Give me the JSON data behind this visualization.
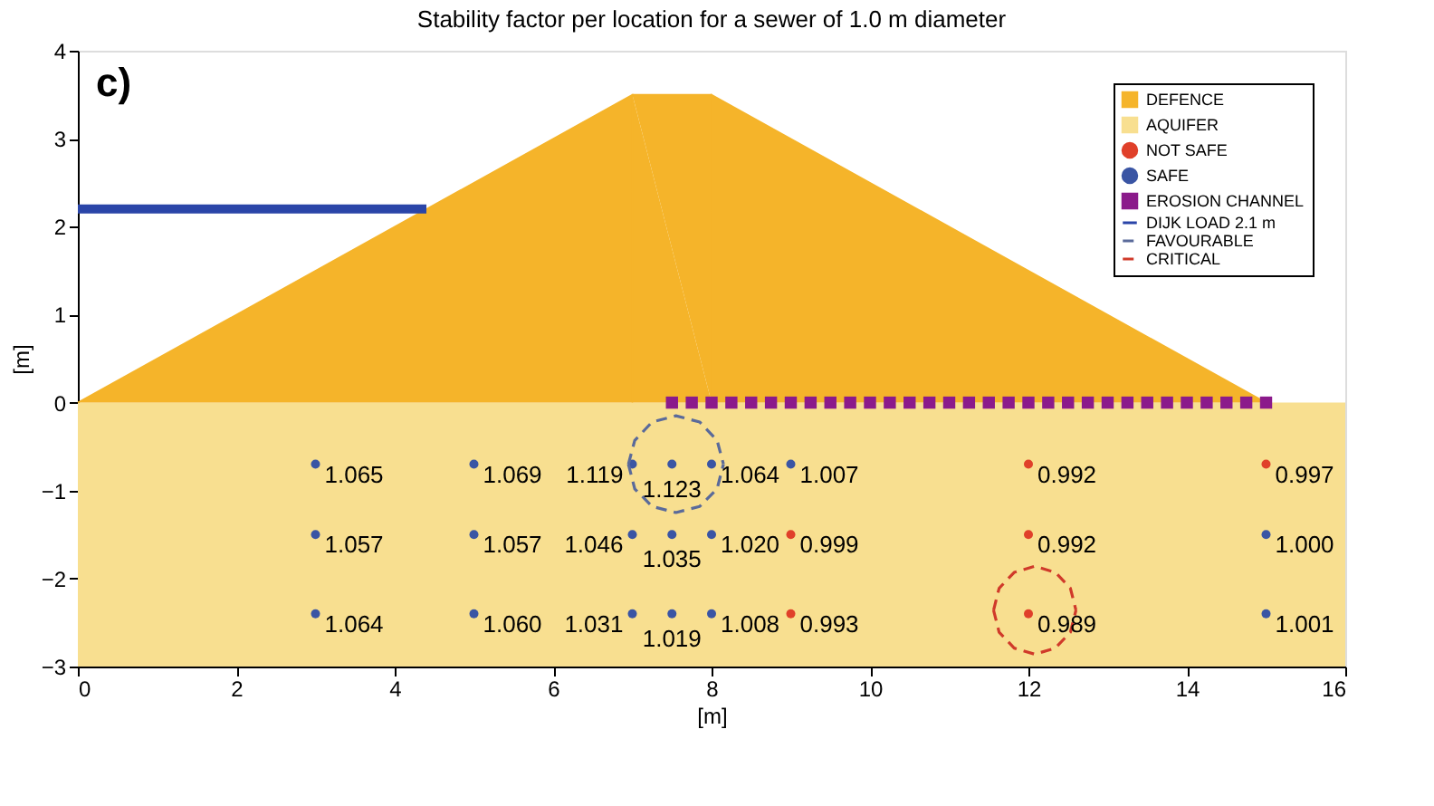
{
  "chart_data": {
    "type": "scatter",
    "title": "Stability factor per location for a sewer of 1.0 m diameter",
    "xlabel": "[m]",
    "ylabel": "[m]",
    "annotations": [
      "c)",
      {
        "text": "0.992",
        "x": 12,
        "y": -0.7
      },
      {
        "text": "0.997",
        "x": 15,
        "y": -0.7
      },
      {
        "text": "0.999",
        "x": 9,
        "y": -1.5
      },
      {
        "text": "0.992",
        "x": 12,
        "y": -1.5
      },
      {
        "text": "0.993",
        "x": 9,
        "y": -2.4
      },
      {
        "text": "0.989",
        "x": 12,
        "y": -2.4
      },
      {
        "text": "1.065",
        "x": 3,
        "y": -0.7
      },
      {
        "text": "1.069",
        "x": 5,
        "y": -0.7
      },
      {
        "text": "1.119",
        "x": 7,
        "y": -0.7
      },
      {
        "text": "1.123",
        "x": 7.5,
        "y": -0.7
      },
      {
        "text": "1.064",
        "x": 8,
        "y": -0.7
      },
      {
        "text": "1.007",
        "x": 9,
        "y": -0.7
      },
      {
        "text": "1.057",
        "x": 3,
        "y": -1.5
      },
      {
        "text": "1.057",
        "x": 5,
        "y": -1.5
      },
      {
        "text": "1.046",
        "x": 7,
        "y": -1.5
      },
      {
        "text": "1.035",
        "x": 7.5,
        "y": -1.5
      },
      {
        "text": "1.020",
        "x": 8,
        "y": -1.5
      },
      {
        "text": "1.000",
        "x": 15,
        "y": -1.5
      },
      {
        "text": "1.064",
        "x": 3,
        "y": -2.4
      },
      {
        "text": "1.060",
        "x": 5,
        "y": -2.4
      },
      {
        "text": "1.031",
        "x": 7,
        "y": -2.4
      },
      {
        "text": "1.019",
        "x": 7.5,
        "y": -2.4
      },
      {
        "text": "1.008",
        "x": 8,
        "y": -2.4
      },
      {
        "text": "1.001",
        "x": 15,
        "y": -2.4
      }
    ],
    "xlim": [
      0,
      16
    ],
    "xticks": [
      0,
      2,
      4,
      6,
      8,
      10,
      12,
      14,
      16
    ],
    "ylim": [
      -3,
      4
    ],
    "yticks": [
      -3,
      -2,
      -1,
      0,
      1,
      2,
      3,
      4
    ],
    "grid": false,
    "legend": "top right",
    "bands": [
      {
        "axis": "y",
        "from": -3,
        "to": 0,
        "label": "AQUIFER",
        "color": "#f8df90"
      }
    ],
    "series": [
      {
        "name": "DEFENCE",
        "type": "area",
        "color": "#f5b42a",
        "x": [
          0,
          7,
          8,
          15
        ],
        "values": [
          0,
          3.5,
          3.5,
          0
        ]
      },
      {
        "name": "NOT SAFE",
        "marker": "circle",
        "color": "#e0402a",
        "x": [
          12,
          15,
          9,
          12,
          9,
          12
        ],
        "values": [
          -0.7,
          -0.7,
          -1.5,
          -1.5,
          -2.4,
          -2.4
        ]
      },
      {
        "name": "SAFE",
        "marker": "circle",
        "color": "#3a55a4",
        "x": [
          3,
          5,
          7,
          7.5,
          8,
          9,
          3,
          5,
          7,
          7.5,
          8,
          15,
          3,
          5,
          7,
          7.5,
          8,
          15
        ],
        "values": [
          -0.7,
          -0.7,
          -0.7,
          -0.7,
          -0.7,
          -0.7,
          -1.5,
          -1.5,
          -1.5,
          -1.5,
          -1.5,
          -1.5,
          -2.4,
          -2.4,
          -2.4,
          -2.4,
          -2.4,
          -2.4
        ]
      },
      {
        "name": "EROSION CHANNEL",
        "marker": "square",
        "color": "#8b1a8b",
        "x": [
          7.5,
          7.75,
          8,
          8.25,
          8.5,
          8.75,
          9,
          9.25,
          9.5,
          9.75,
          10,
          10.25,
          10.5,
          10.75,
          11,
          11.25,
          11.5,
          11.75,
          12,
          12.25,
          12.5,
          12.75,
          13,
          13.25,
          13.5,
          13.75,
          14,
          14.25,
          14.5,
          14.75,
          15
        ],
        "values": [
          0,
          0,
          0,
          0,
          0,
          0,
          0,
          0,
          0,
          0,
          0,
          0,
          0,
          0,
          0,
          0,
          0,
          0,
          0,
          0,
          0,
          0,
          0,
          0,
          0,
          0,
          0,
          0,
          0,
          0,
          0
        ]
      },
      {
        "name": "DIJK LOAD 2.1 m",
        "type": "line",
        "line_style": "solid",
        "color": "#2a45a8",
        "x": [
          0,
          4.4
        ],
        "values": [
          2.2,
          2.2
        ]
      },
      {
        "name": "FAVOURABLE",
        "type": "line",
        "line_style": "dashed",
        "color": "#5a6a9a",
        "x": [
          6.95,
          7.03,
          7.25,
          7.55,
          7.85,
          8.07,
          8.15,
          null,
          6.95,
          7.03,
          7.25,
          7.55,
          7.85,
          8.07,
          8.15
        ],
        "values": [
          -0.7,
          -0.43,
          -0.22,
          -0.15,
          -0.22,
          -0.43,
          -0.7,
          null,
          -0.7,
          -0.98,
          -1.18,
          -1.25,
          -1.18,
          -0.98,
          -0.7
        ]
      },
      {
        "name": "CRITICAL",
        "type": "line",
        "line_style": "dashed",
        "color": "#d03a2a",
        "x": [
          11.56,
          11.63,
          11.82,
          12.08,
          12.34,
          12.53,
          12.6,
          null,
          11.56,
          11.63,
          11.82,
          12.08,
          12.34,
          12.53,
          12.6
        ],
        "values": [
          -2.36,
          -2.11,
          -1.93,
          -1.86,
          -1.93,
          -2.11,
          -2.36,
          null,
          -2.36,
          -2.61,
          -2.79,
          -2.86,
          -2.79,
          -2.61,
          -2.36
        ]
      }
    ]
  }
}
